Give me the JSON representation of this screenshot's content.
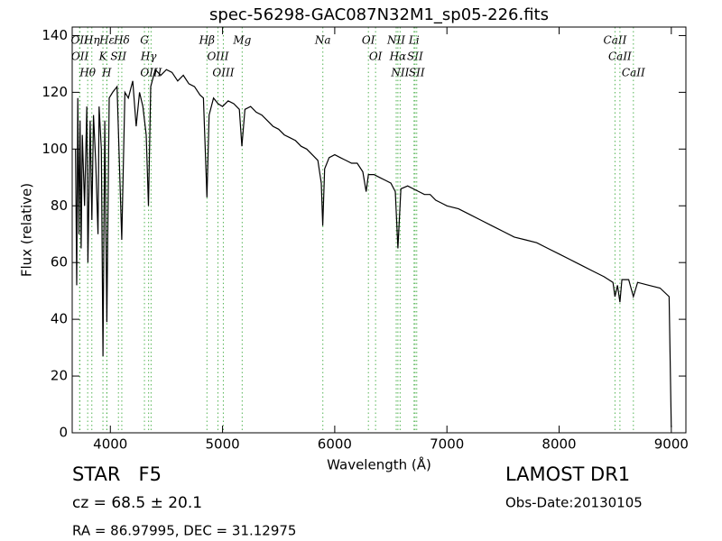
{
  "chart_data": {
    "type": "line",
    "title": "spec-56298-GAC087N32M1_sp05-226.fits",
    "x_label": "Wavelength (Å)",
    "y_label": "Flux (relative)",
    "xlim": [
      3660,
      9130
    ],
    "ylim": [
      0,
      143
    ],
    "xticks": [
      4000,
      5000,
      6000,
      7000,
      8000,
      9000
    ],
    "yticks": [
      0,
      20,
      40,
      60,
      80,
      100,
      120,
      140
    ],
    "color": "#000000",
    "marker_color": "#55b455",
    "x": [
      3690,
      3700,
      3710,
      3720,
      3730,
      3740,
      3750,
      3770,
      3790,
      3800,
      3820,
      3835,
      3850,
      3870,
      3890,
      3900,
      3920,
      3934,
      3950,
      3969,
      3990,
      4020,
      4060,
      4102,
      4130,
      4160,
      4200,
      4230,
      4260,
      4290,
      4320,
      4340,
      4360,
      4400,
      4450,
      4500,
      4550,
      4600,
      4650,
      4700,
      4750,
      4800,
      4830,
      4861,
      4880,
      4920,
      4960,
      5000,
      5050,
      5100,
      5150,
      5172,
      5200,
      5250,
      5300,
      5350,
      5400,
      5450,
      5500,
      5550,
      5600,
      5650,
      5700,
      5750,
      5800,
      5850,
      5880,
      5893,
      5910,
      5950,
      6000,
      6050,
      6100,
      6150,
      6200,
      6250,
      6280,
      6300,
      6350,
      6400,
      6450,
      6500,
      6540,
      6563,
      6590,
      6650,
      6700,
      6750,
      6800,
      6850,
      6900,
      6950,
      7000,
      7100,
      7200,
      7300,
      7400,
      7500,
      7600,
      7700,
      7800,
      7900,
      8000,
      8100,
      8200,
      8300,
      8400,
      8480,
      8498,
      8520,
      8542,
      8560,
      8620,
      8662,
      8700,
      8800,
      8900,
      8980,
      9000
    ],
    "values": [
      100,
      52,
      118,
      70,
      110,
      65,
      105,
      80,
      115,
      60,
      110,
      75,
      112,
      95,
      70,
      115,
      100,
      27,
      110,
      39,
      118,
      120,
      122,
      68,
      120,
      118,
      124,
      108,
      120,
      115,
      105,
      80,
      122,
      128,
      126,
      128,
      127,
      124,
      126,
      123,
      122,
      119,
      118,
      83,
      112,
      118,
      116,
      115,
      117,
      116,
      114,
      101,
      114,
      115,
      113,
      112,
      110,
      108,
      107,
      105,
      104,
      103,
      101,
      100,
      98,
      96,
      88,
      73,
      93,
      97,
      98,
      97,
      96,
      95,
      95,
      92,
      85,
      91,
      91,
      90,
      89,
      88,
      85,
      65,
      86,
      87,
      86,
      85,
      84,
      84,
      82,
      81,
      80,
      79,
      77,
      75,
      73,
      71,
      69,
      68,
      67,
      65,
      63,
      61,
      59,
      57,
      55,
      53,
      48,
      52,
      46,
      54,
      54,
      48,
      53,
      52,
      51,
      48,
      2
    ],
    "lines": [
      {
        "label": "OII",
        "wavelength": 3726
      },
      {
        "label": "OII",
        "wavelength": 3729
      },
      {
        "label": "Hθ",
        "wavelength": 3798
      },
      {
        "label": "Hη",
        "wavelength": 3835
      },
      {
        "label": "K",
        "wavelength": 3934
      },
      {
        "label": "Hε",
        "wavelength": 3970
      },
      {
        "label": "H",
        "wavelength": 3968
      },
      {
        "label": "SII",
        "wavelength": 4072
      },
      {
        "label": "Hδ",
        "wavelength": 4102
      },
      {
        "label": "G",
        "wavelength": 4304
      },
      {
        "label": "Hγ",
        "wavelength": 4341
      },
      {
        "label": "OIII",
        "wavelength": 4363
      },
      {
        "label": "Hβ",
        "wavelength": 4861
      },
      {
        "label": "OIII",
        "wavelength": 4959
      },
      {
        "label": "OIII",
        "wavelength": 5007
      },
      {
        "label": "Mg",
        "wavelength": 5175
      },
      {
        "label": "Na",
        "wavelength": 5894
      },
      {
        "label": "OI",
        "wavelength": 6300
      },
      {
        "label": "OI",
        "wavelength": 6364
      },
      {
        "label": "NII",
        "wavelength": 6548
      },
      {
        "label": "Hα",
        "wavelength": 6563
      },
      {
        "label": "NII",
        "wavelength": 6583
      },
      {
        "label": "Li",
        "wavelength": 6707
      },
      {
        "label": "SII",
        "wavelength": 6716
      },
      {
        "label": "SII",
        "wavelength": 6731
      },
      {
        "label": "CaII",
        "wavelength": 8498
      },
      {
        "label": "CaII",
        "wavelength": 8542
      },
      {
        "label": "CaII",
        "wavelength": 8662
      }
    ]
  },
  "footer": {
    "class_text": "STAR   F5",
    "cz_text": "cz = 68.5 ± 20.1",
    "coords_text": "RA = 86.97995, DEC = 31.12975",
    "survey_text": "LAMOST DR1",
    "date_text": "Obs-Date:20130105"
  }
}
